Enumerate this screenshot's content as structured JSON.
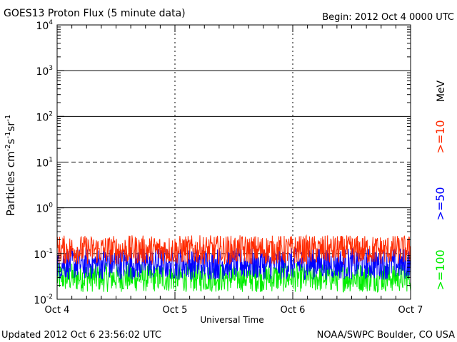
{
  "chart_data": {
    "type": "line",
    "title": "GOES13 Proton Flux (5 minute data)",
    "begin_label": "Begin: 2012 Oct 4 0000 UTC",
    "xlabel": "Universal Time",
    "ylabel_main": "Particles cm",
    "ylabel_sup1": "-2",
    "ylabel_mid1": "s",
    "ylabel_sup2": "-1",
    "ylabel_mid2": "sr",
    "ylabel_sup3": "-1",
    "y_scale": "log",
    "ylim": [
      0.01,
      10000
    ],
    "y_ticks": [
      {
        "base": "10",
        "exp": "-2",
        "value": 0.01
      },
      {
        "base": "10",
        "exp": "-1",
        "value": 0.1
      },
      {
        "base": "10",
        "exp": "0",
        "value": 1
      },
      {
        "base": "10",
        "exp": "1",
        "value": 10
      },
      {
        "base": "10",
        "exp": "2",
        "value": 100
      },
      {
        "base": "10",
        "exp": "3",
        "value": 1000
      },
      {
        "base": "10",
        "exp": "4",
        "value": 10000
      }
    ],
    "x_ticks": [
      "Oct 4",
      "Oct 5",
      "Oct 6",
      "Oct 7"
    ],
    "x_range_days": [
      0,
      3
    ],
    "threshold_lines": [
      {
        "value": 10,
        "style": "dashed"
      },
      {
        "value": 0.1,
        "style": "dashed"
      }
    ],
    "grid": true,
    "legend_placement": "right",
    "series": [
      {
        "name": ">=10",
        "color": "#ff2a00",
        "baseline": 0.12,
        "spread": 0.32
      },
      {
        "name": ">=50",
        "color": "#0000ff",
        "baseline": 0.06,
        "spread": 0.35
      },
      {
        "name": ">=100",
        "color": "#00ee00",
        "baseline": 0.03,
        "spread": 0.32
      }
    ],
    "legend_unit": "MeV",
    "footer_left": "Updated 2012 Oct  6 23:56:02 UTC",
    "footer_right": "NOAA/SWPC Boulder, CO USA"
  }
}
